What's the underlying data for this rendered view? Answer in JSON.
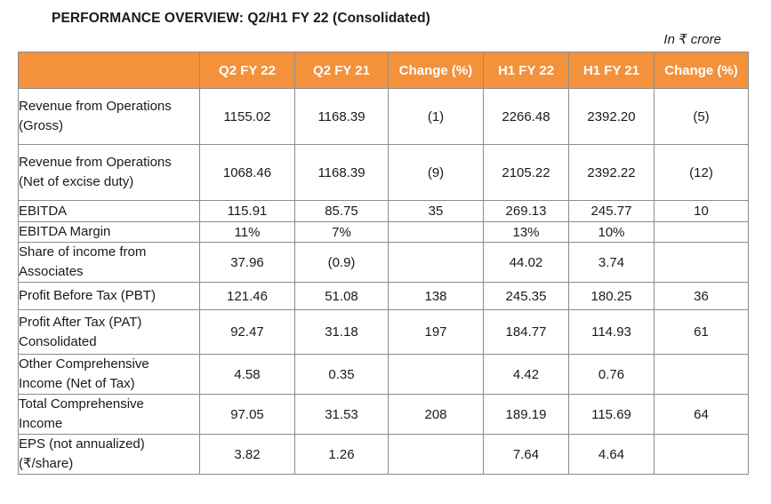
{
  "title": "PERFORMANCE OVERVIEW: Q2/H1 FY 22 (Consolidated)",
  "unit_note": "In ₹ crore",
  "header_color": "#f4913b",
  "columns": [
    "",
    "Q2 FY 22",
    "Q2 FY 21",
    "Change (%)",
    "H1 FY 22",
    "H1 FY 21",
    "Change (%)"
  ],
  "rows": [
    {
      "label": [
        "Revenue from Operations",
        "(Gross)"
      ],
      "values": [
        "1155.02",
        "1168.39",
        "(1)",
        "2266.48",
        "2392.20",
        "(5)"
      ]
    },
    {
      "label": [
        "Revenue from Operations",
        "(Net of excise duty)"
      ],
      "values": [
        "1068.46",
        "1168.39",
        "(9)",
        "2105.22",
        "2392.22",
        "(12)"
      ]
    },
    {
      "label": [
        "EBITDA"
      ],
      "values": [
        "115.91",
        "85.75",
        "35",
        "269.13",
        "245.77",
        "10"
      ]
    },
    {
      "label": [
        "EBITDA Margin"
      ],
      "values": [
        "11%",
        "7%",
        "",
        "13%",
        "10%",
        ""
      ]
    },
    {
      "label": [
        "Share of income from",
        "Associates"
      ],
      "values": [
        "37.96",
        "(0.9)",
        "",
        "44.02",
        "3.74",
        ""
      ]
    },
    {
      "label": [
        "Profit Before Tax (PBT)"
      ],
      "values": [
        "121.46",
        "51.08",
        "138",
        "245.35",
        "180.25",
        "36"
      ]
    },
    {
      "label": [
        "Profit After Tax (PAT)",
        "Consolidated"
      ],
      "values": [
        "92.47",
        "31.18",
        "197",
        "184.77",
        "114.93",
        "61"
      ]
    },
    {
      "label": [
        "Other Comprehensive",
        "Income (Net of Tax)"
      ],
      "values": [
        "4.58",
        "0.35",
        "",
        "4.42",
        "0.76",
        ""
      ]
    },
    {
      "label": [
        "Total Comprehensive",
        "Income"
      ],
      "values": [
        "97.05",
        "31.53",
        "208",
        "189.19",
        "115.69",
        "64"
      ]
    },
    {
      "label": [
        "EPS (not annualized)",
        "(₹/share)"
      ],
      "values": [
        "3.82",
        "1.26",
        "",
        "7.64",
        "4.64",
        ""
      ]
    }
  ]
}
